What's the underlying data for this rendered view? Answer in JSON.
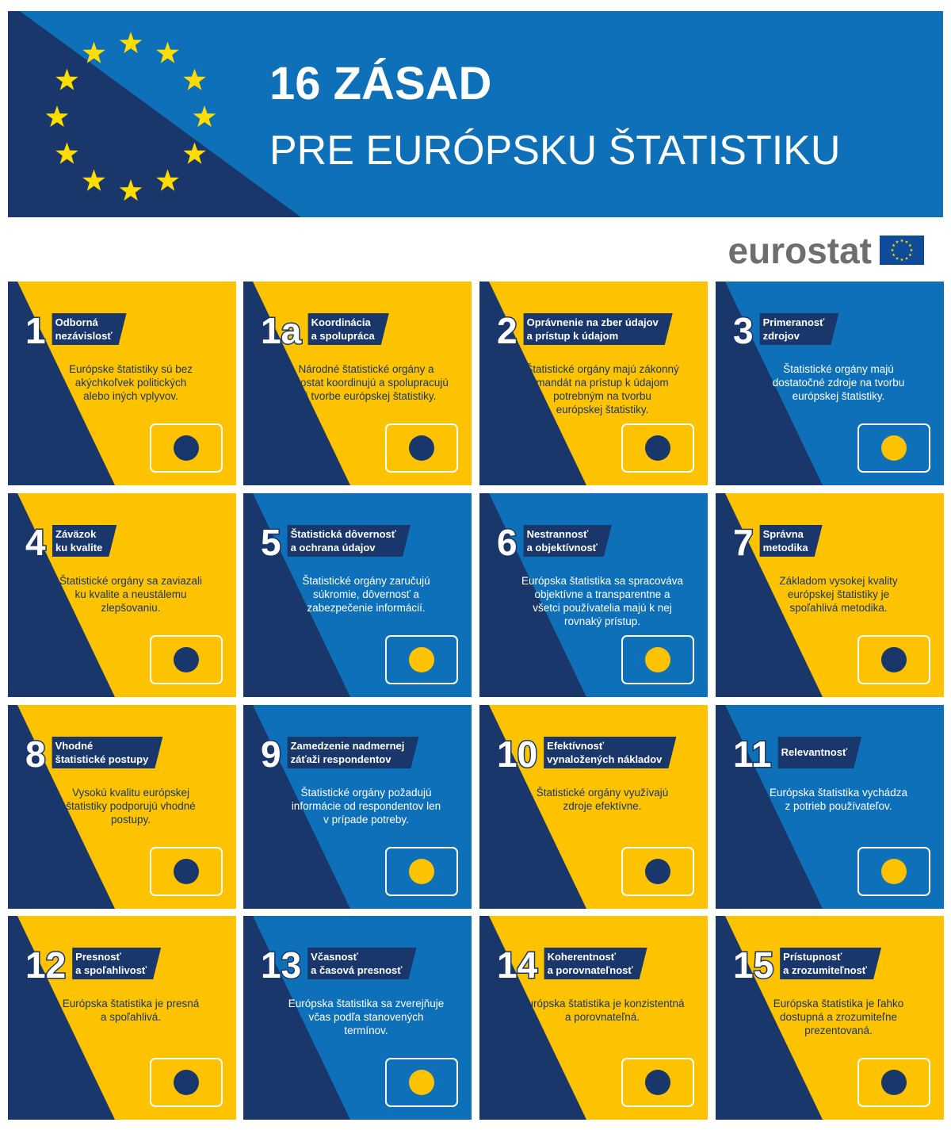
{
  "header": {
    "title_lines": [
      "16 ZÁSAD",
      "PRE EURÓPSKU ŠTATISTIKU"
    ]
  },
  "logo": "eurostat",
  "cards": [
    {
      "number": "1",
      "title": [
        "Odborná",
        "nezávislosť"
      ],
      "text": [
        "Európske štatistiky sú bez",
        "akýchkoľvek politických",
        "alebo iných vplyvov."
      ],
      "bg": "yellow"
    },
    {
      "number": "1a",
      "title": [
        "Koordinácia",
        "a spolupráca"
      ],
      "text": [
        "Národné štatistické orgány a",
        "Eurostat koordinujú a spolupracujú",
        "pri tvorbe európskej štatistiky."
      ],
      "bg": "yellow"
    },
    {
      "number": "2",
      "title": [
        "Oprávnenie na zber údajov",
        "a prístup k údajom"
      ],
      "text": [
        "Štatistické orgány majú zákonný",
        "mandát na prístup k údajom",
        "potrebným na tvorbu",
        "európskej štatistiky."
      ],
      "bg": "yellow"
    },
    {
      "number": "3",
      "title": [
        "Primeranosť",
        "zdrojov"
      ],
      "text": [
        "Štatistické orgány majú",
        "dostatočné zdroje na tvorbu",
        "európskej štatistiky."
      ],
      "bg": "blue"
    },
    {
      "number": "4",
      "title": [
        "Záväzok",
        "ku kvalite"
      ],
      "text": [
        "Štatistické orgány sa zaviazali",
        "ku kvalite a neustálemu",
        "zlepšovaniu."
      ],
      "bg": "yellow"
    },
    {
      "number": "5",
      "title": [
        "Štatistická dôvernosť",
        "a ochrana údajov"
      ],
      "text": [
        "Štatistické orgány zaručujú",
        "súkromie, dôvernosť a",
        "zabezpečenie informácií."
      ],
      "bg": "blue"
    },
    {
      "number": "6",
      "title": [
        "Nestrannosť",
        "a objektívnosť"
      ],
      "text": [
        "Európska štatistika sa spracováva",
        "objektívne a transparentne a",
        "všetci používatelia majú k nej",
        "rovnaký prístup."
      ],
      "bg": "blue"
    },
    {
      "number": "7",
      "title": [
        "Správna",
        "metodika"
      ],
      "text": [
        "Základom vysokej kvality",
        "európskej štatistiky je",
        "spoľahlivá metodika."
      ],
      "bg": "yellow"
    },
    {
      "number": "8",
      "title": [
        "Vhodné",
        "štatistické postupy"
      ],
      "text": [
        "Vysokú kvalitu európskej",
        "štatistiky podporujú vhodné",
        "postupy."
      ],
      "bg": "yellow"
    },
    {
      "number": "9",
      "title": [
        "Zamedzenie nadmernej",
        "záťaži respondentov"
      ],
      "text": [
        "Štatistické orgány požadujú",
        "informácie od respondentov len",
        "v prípade potreby."
      ],
      "bg": "blue"
    },
    {
      "number": "10",
      "title": [
        "Efektívnosť",
        "vynaložených nákladov"
      ],
      "text": [
        "Štatistické orgány využívajú",
        "zdroje efektívne."
      ],
      "bg": "yellow"
    },
    {
      "number": "11",
      "title": [
        "Relevantnosť"
      ],
      "text": [
        "Európska štatistika vychádza",
        "z potrieb používateľov."
      ],
      "bg": "blue"
    },
    {
      "number": "12",
      "title": [
        "Presnosť",
        "a spoľahlivosť"
      ],
      "text": [
        "Európska štatistika je presná",
        "a spoľahlivá."
      ],
      "bg": "yellow"
    },
    {
      "number": "13",
      "title": [
        "Včasnosť",
        "a časová presnosť"
      ],
      "text": [
        "Európska štatistika sa zverejňuje",
        "včas podľa stanovených",
        "termínov."
      ],
      "bg": "blue"
    },
    {
      "number": "14",
      "title": [
        "Koherentnosť",
        "a porovnateľnosť"
      ],
      "text": [
        "Európska štatistika je konzistentná",
        "a porovnateľná."
      ],
      "bg": "yellow"
    },
    {
      "number": "15",
      "title": [
        "Prístupnosť",
        "a zrozumiteľnosť"
      ],
      "text": [
        "Európska štatistika  je ľahko",
        "dostupná a zrozumiteľne",
        "prezentovaná."
      ],
      "bg": "yellow"
    }
  ]
}
